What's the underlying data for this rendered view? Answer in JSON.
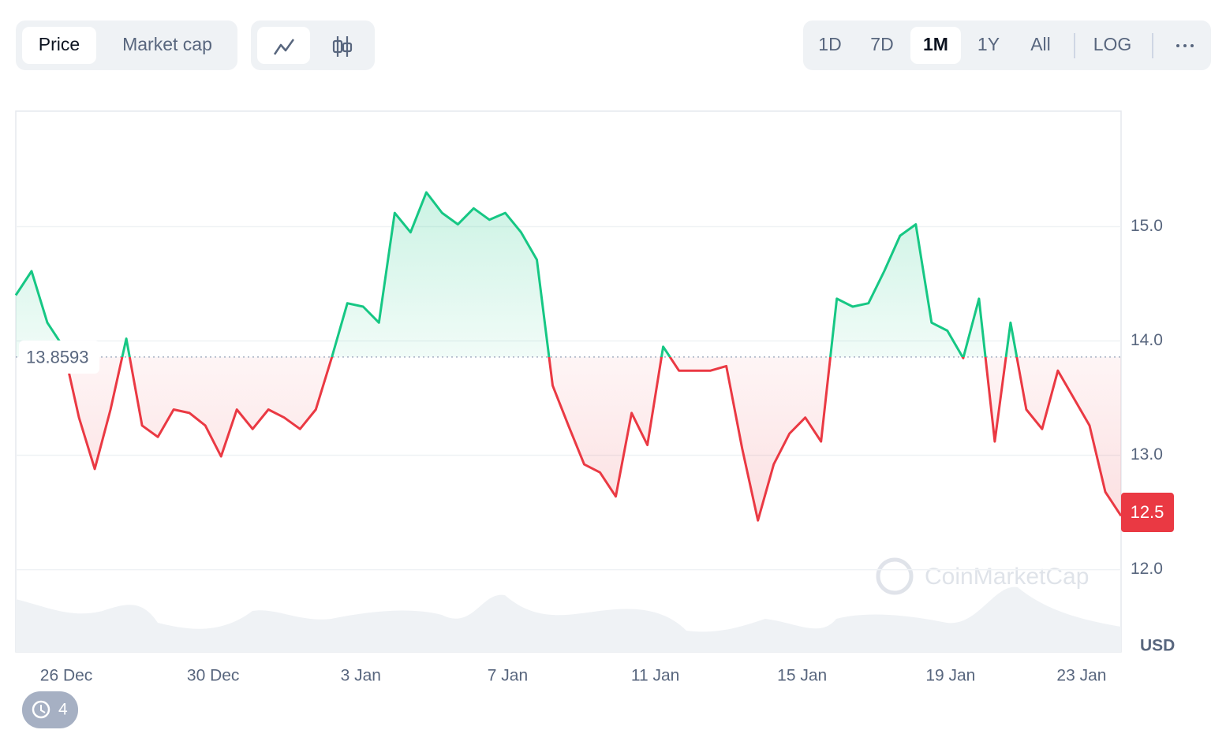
{
  "ui": {
    "tabs": [
      "Price",
      "Market cap"
    ],
    "active_tab": "Price",
    "ranges": [
      "1D",
      "7D",
      "1M",
      "1Y",
      "All"
    ],
    "active_range": "1M",
    "log_button": "LOG",
    "history_count": 4,
    "watermark": "CoinMarketCap"
  },
  "chart_data": {
    "type": "line",
    "series": [
      {
        "name": "Price",
        "color": "#16c784",
        "down_color": "#ea3943",
        "values": [
          14.4,
          14.61,
          14.16,
          13.95,
          13.33,
          12.88,
          13.4,
          14.02,
          13.26,
          13.16,
          13.4,
          13.37,
          13.26,
          12.99,
          13.4,
          13.23,
          13.4,
          13.33,
          13.23,
          13.4,
          13.85,
          14.33,
          14.3,
          14.16,
          15.12,
          14.95,
          15.3,
          15.12,
          15.02,
          15.16,
          15.06,
          15.12,
          14.95,
          14.71,
          13.61,
          13.26,
          12.92,
          12.85,
          12.64,
          13.37,
          13.09,
          13.95,
          13.74,
          13.74,
          13.74,
          13.78,
          13.06,
          12.43,
          12.92,
          13.19,
          13.33,
          13.12,
          14.37,
          14.3,
          14.33,
          14.61,
          14.92,
          15.02,
          14.16,
          14.09,
          13.85,
          14.37,
          13.12,
          14.16,
          13.4,
          13.23,
          13.74,
          13.5,
          13.26,
          12.68,
          12.47
        ]
      }
    ],
    "baseline": 13.8593,
    "current_price": 12.5,
    "xlim": [
      0,
      70
    ],
    "xticks": [
      {
        "value": 3.2,
        "label": "26 Dec"
      },
      {
        "value": 12.5,
        "label": "30 Dec"
      },
      {
        "value": 21.85,
        "label": "3 Jan"
      },
      {
        "value": 31.15,
        "label": "7 Jan"
      },
      {
        "value": 40.5,
        "label": "11 Jan"
      },
      {
        "value": 49.8,
        "label": "15 Jan"
      },
      {
        "value": 59.2,
        "label": "19 Jan"
      },
      {
        "value": 67.5,
        "label": "23 Jan"
      }
    ],
    "ylim": [
      11.28,
      16.01
    ],
    "yticks": [
      {
        "value": 12,
        "label": "12.0"
      },
      {
        "value": 13,
        "label": "13.0"
      },
      {
        "value": 14,
        "label": "14.0"
      },
      {
        "value": 15,
        "label": "15.0"
      }
    ],
    "y_unit": "USD",
    "grid": true
  }
}
